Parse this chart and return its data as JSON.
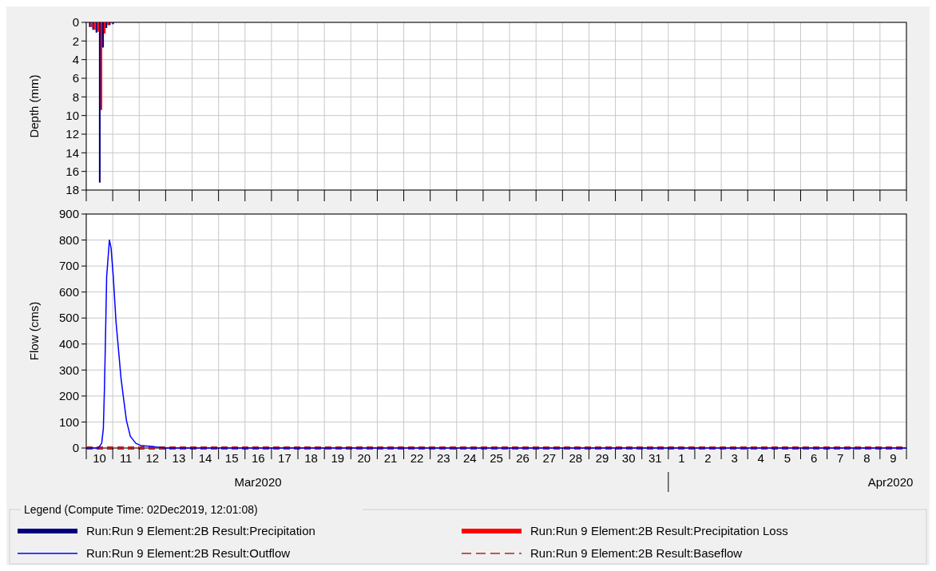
{
  "chart_data": [
    {
      "type": "bar",
      "ylabel": "Depth (mm)",
      "ylim": [
        18,
        0
      ],
      "yticks": [
        0,
        2,
        4,
        6,
        8,
        10,
        12,
        14,
        16,
        18
      ],
      "xlim": [
        "2020-03-10T00:00",
        "2020-04-10T00:00"
      ],
      "xticks": [
        {
          "value": "2020-03-10T00:00",
          "label": null
        },
        {
          "value": "2020-03-11T00:00",
          "label": null
        },
        {
          "value": "2020-03-12T00:00",
          "label": null
        },
        {
          "value": "2020-03-13T00:00",
          "label": null
        },
        {
          "value": "2020-03-14T00:00",
          "label": null
        },
        {
          "value": "2020-03-15T00:00",
          "label": null
        },
        {
          "value": "2020-03-16T00:00",
          "label": null
        },
        {
          "value": "2020-03-17T00:00",
          "label": null
        },
        {
          "value": "2020-03-18T00:00",
          "label": null
        },
        {
          "value": "2020-03-19T00:00",
          "label": null
        },
        {
          "value": "2020-03-20T00:00",
          "label": null
        },
        {
          "value": "2020-03-21T00:00",
          "label": null
        },
        {
          "value": "2020-03-22T00:00",
          "label": null
        },
        {
          "value": "2020-03-23T00:00",
          "label": null
        },
        {
          "value": "2020-03-24T00:00",
          "label": null
        },
        {
          "value": "2020-03-25T00:00",
          "label": null
        },
        {
          "value": "2020-03-26T00:00",
          "label": null
        },
        {
          "value": "2020-03-27T00:00",
          "label": null
        },
        {
          "value": "2020-03-28T00:00",
          "label": null
        },
        {
          "value": "2020-03-29T00:00",
          "label": null
        },
        {
          "value": "2020-03-30T00:00",
          "label": null
        },
        {
          "value": "2020-03-31T00:00",
          "label": null
        },
        {
          "value": "2020-04-01T00:00",
          "label": null
        },
        {
          "value": "2020-04-02T00:00",
          "label": null
        },
        {
          "value": "2020-04-03T00:00",
          "label": null
        },
        {
          "value": "2020-04-04T00:00",
          "label": null
        },
        {
          "value": "2020-04-05T00:00",
          "label": null
        },
        {
          "value": "2020-04-06T00:00",
          "label": null
        },
        {
          "value": "2020-04-07T00:00",
          "label": null
        },
        {
          "value": "2020-04-08T00:00",
          "label": null
        },
        {
          "value": "2020-04-09T00:00",
          "label": null
        },
        {
          "value": "2020-04-10T00:00",
          "label": null
        }
      ],
      "tick_labels": "y",
      "grid": true,
      "legend": "bottom",
      "x": [
        "2020-03-10T04:00",
        "2020-03-10T07:00",
        "2020-03-10T10:00",
        "2020-03-10T13:00",
        "2020-03-10T16:00",
        "2020-03-10T19:00",
        "2020-03-10T22:00",
        "2020-03-11T01:00"
      ],
      "series": [
        {
          "name": "Run:Run 9 Element:2B Result:Precipitation",
          "color": "#000080",
          "values": [
            0.5,
            0.8,
            1.1,
            17.2,
            2.7,
            0.6,
            0.3,
            0.2
          ]
        },
        {
          "name": "Run:Run 9 Element:2B Result:Precipitation Loss",
          "color": "#ff0000",
          "values": [
            0.5,
            0.8,
            1.0,
            9.4,
            1.2,
            0.3,
            0.1,
            0
          ]
        }
      ]
    },
    {
      "type": "line",
      "ylabel": "Flow (cms)",
      "ylim": [
        0,
        900
      ],
      "yticks": [
        0,
        100,
        200,
        300,
        400,
        500,
        600,
        700,
        800,
        900
      ],
      "xlim": [
        "2020-03-10T00:00",
        "2020-04-10T00:00"
      ],
      "xticks": [
        {
          "value": "2020-03-10T00:00",
          "label": null
        },
        {
          "value": "2020-03-10T12:00",
          "label": "10"
        },
        {
          "value": "2020-03-11T00:00",
          "label": null
        },
        {
          "value": "2020-03-11T12:00",
          "label": "11"
        },
        {
          "value": "2020-03-12T00:00",
          "label": null
        },
        {
          "value": "2020-03-12T12:00",
          "label": "12"
        },
        {
          "value": "2020-03-13T00:00",
          "label": null
        },
        {
          "value": "2020-03-13T12:00",
          "label": "13"
        },
        {
          "value": "2020-03-14T00:00",
          "label": null
        },
        {
          "value": "2020-03-14T12:00",
          "label": "14"
        },
        {
          "value": "2020-03-15T00:00",
          "label": null
        },
        {
          "value": "2020-03-15T12:00",
          "label": "15"
        },
        {
          "value": "2020-03-16T00:00",
          "label": null
        },
        {
          "value": "2020-03-16T12:00",
          "label": "16"
        },
        {
          "value": "2020-03-17T00:00",
          "label": null
        },
        {
          "value": "2020-03-17T12:00",
          "label": "17"
        },
        {
          "value": "2020-03-18T00:00",
          "label": null
        },
        {
          "value": "2020-03-18T12:00",
          "label": "18"
        },
        {
          "value": "2020-03-19T00:00",
          "label": null
        },
        {
          "value": "2020-03-19T12:00",
          "label": "19"
        },
        {
          "value": "2020-03-20T00:00",
          "label": null
        },
        {
          "value": "2020-03-20T12:00",
          "label": "20"
        },
        {
          "value": "2020-03-21T00:00",
          "label": null
        },
        {
          "value": "2020-03-21T12:00",
          "label": "21"
        },
        {
          "value": "2020-03-22T00:00",
          "label": null
        },
        {
          "value": "2020-03-22T12:00",
          "label": "22"
        },
        {
          "value": "2020-03-23T00:00",
          "label": null
        },
        {
          "value": "2020-03-23T12:00",
          "label": "23"
        },
        {
          "value": "2020-03-24T00:00",
          "label": null
        },
        {
          "value": "2020-03-24T12:00",
          "label": "24"
        },
        {
          "value": "2020-03-25T00:00",
          "label": null
        },
        {
          "value": "2020-03-25T12:00",
          "label": "25"
        },
        {
          "value": "2020-03-26T00:00",
          "label": null
        },
        {
          "value": "2020-03-26T12:00",
          "label": "26"
        },
        {
          "value": "2020-03-27T00:00",
          "label": null
        },
        {
          "value": "2020-03-27T12:00",
          "label": "27"
        },
        {
          "value": "2020-03-28T00:00",
          "label": null
        },
        {
          "value": "2020-03-28T12:00",
          "label": "28"
        },
        {
          "value": "2020-03-29T00:00",
          "label": null
        },
        {
          "value": "2020-03-29T12:00",
          "label": "29"
        },
        {
          "value": "2020-03-30T00:00",
          "label": null
        },
        {
          "value": "2020-03-30T12:00",
          "label": "30"
        },
        {
          "value": "2020-03-31T00:00",
          "label": null
        },
        {
          "value": "2020-03-31T12:00",
          "label": "31"
        },
        {
          "value": "2020-04-01T00:00",
          "label": null
        },
        {
          "value": "2020-04-01T12:00",
          "label": "1"
        },
        {
          "value": "2020-04-02T00:00",
          "label": null
        },
        {
          "value": "2020-04-02T12:00",
          "label": "2"
        },
        {
          "value": "2020-04-03T00:00",
          "label": null
        },
        {
          "value": "2020-04-03T12:00",
          "label": "3"
        },
        {
          "value": "2020-04-04T00:00",
          "label": null
        },
        {
          "value": "2020-04-04T12:00",
          "label": "4"
        },
        {
          "value": "2020-04-05T00:00",
          "label": null
        },
        {
          "value": "2020-04-05T12:00",
          "label": "5"
        },
        {
          "value": "2020-04-06T00:00",
          "label": null
        },
        {
          "value": "2020-04-06T12:00",
          "label": "6"
        },
        {
          "value": "2020-04-07T00:00",
          "label": null
        },
        {
          "value": "2020-04-07T12:00",
          "label": "7"
        },
        {
          "value": "2020-04-08T00:00",
          "label": null
        },
        {
          "value": "2020-04-08T12:00",
          "label": "8"
        },
        {
          "value": "2020-04-09T00:00",
          "label": null
        },
        {
          "value": "2020-04-09T12:00",
          "label": "9"
        },
        {
          "value": "2020-04-10T00:00",
          "label": null
        }
      ],
      "grid": true,
      "legend": "bottom",
      "legend_title": "Legend (Compute Time: 02Dec2019, 12:01:08)",
      "annotations": [
        "Mar2020",
        "Apr2020"
      ],
      "series": [
        {
          "name": "Run:Run 9 Element:2B Result:Outflow",
          "color": "#0000ff",
          "x": [
            "2020-03-10T00:00",
            "2020-03-10T11:00",
            "2020-03-10T14:00",
            "2020-03-10T15:30",
            "2020-03-10T16:30",
            "2020-03-10T17:30",
            "2020-03-10T18:30",
            "2020-03-10T21:00",
            "2020-03-10T22:30",
            "2020-03-11T00:30",
            "2020-03-11T03:00",
            "2020-03-11T05:00",
            "2020-03-11T07:30",
            "2020-03-11T10:00",
            "2020-03-11T12:30",
            "2020-03-11T16:00",
            "2020-03-11T21:00",
            "2020-03-12T02:00",
            "2020-03-12T13:30",
            "2020-03-13T00:00",
            "2020-04-10T00:00"
          ],
          "values": [
            0,
            0,
            18,
            75,
            228,
            433,
            658,
            800,
            770,
            660,
            485,
            390,
            270,
            185,
            105,
            45,
            18,
            9,
            5,
            0,
            0
          ]
        },
        {
          "name": "Run:Run 9 Element:2B Result:Baseflow",
          "color": "#b22222",
          "line_style": "dashed",
          "x": [
            "2020-03-10T00:00",
            "2020-04-10T00:00"
          ],
          "values": [
            0,
            0
          ]
        }
      ]
    }
  ]
}
